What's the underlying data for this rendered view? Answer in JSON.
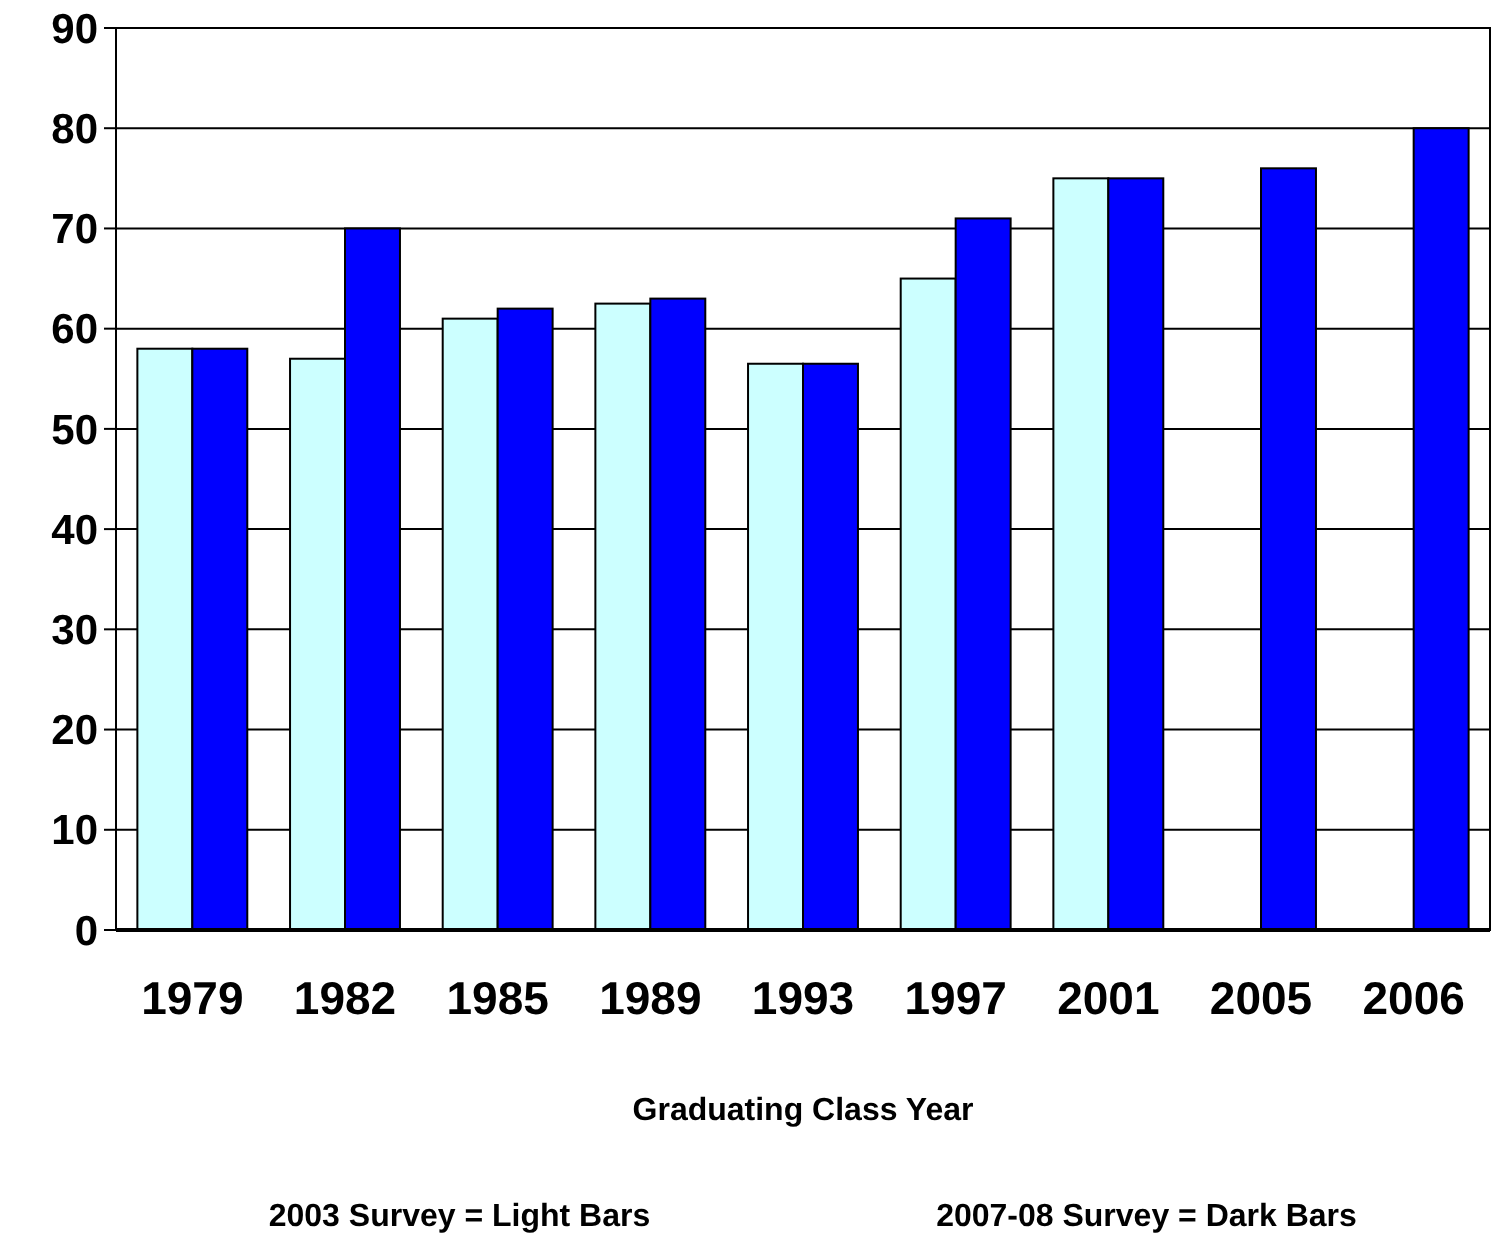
{
  "chart_data": {
    "type": "bar",
    "xlabel": "Graduating Class Year",
    "categories": [
      "1979",
      "1982",
      "1985",
      "1989",
      "1993",
      "1997",
      "2001",
      "2005",
      "2006"
    ],
    "series": [
      {
        "color": "#ccffff",
        "values": [
          58,
          57,
          61,
          62.5,
          56.5,
          65,
          75,
          null,
          null
        ]
      },
      {
        "color": "#0000ff",
        "values": [
          58,
          70,
          62,
          63,
          56.5,
          71,
          75,
          76,
          80
        ]
      }
    ],
    "ylim": [
      0,
      90
    ],
    "yticks": [
      0,
      10,
      20,
      30,
      40,
      50,
      60,
      70,
      80,
      90
    ],
    "grid": "y",
    "annotations": [
      "2003 Survey = Light Bars",
      "2007-08 Survey = Dark Bars"
    ]
  }
}
